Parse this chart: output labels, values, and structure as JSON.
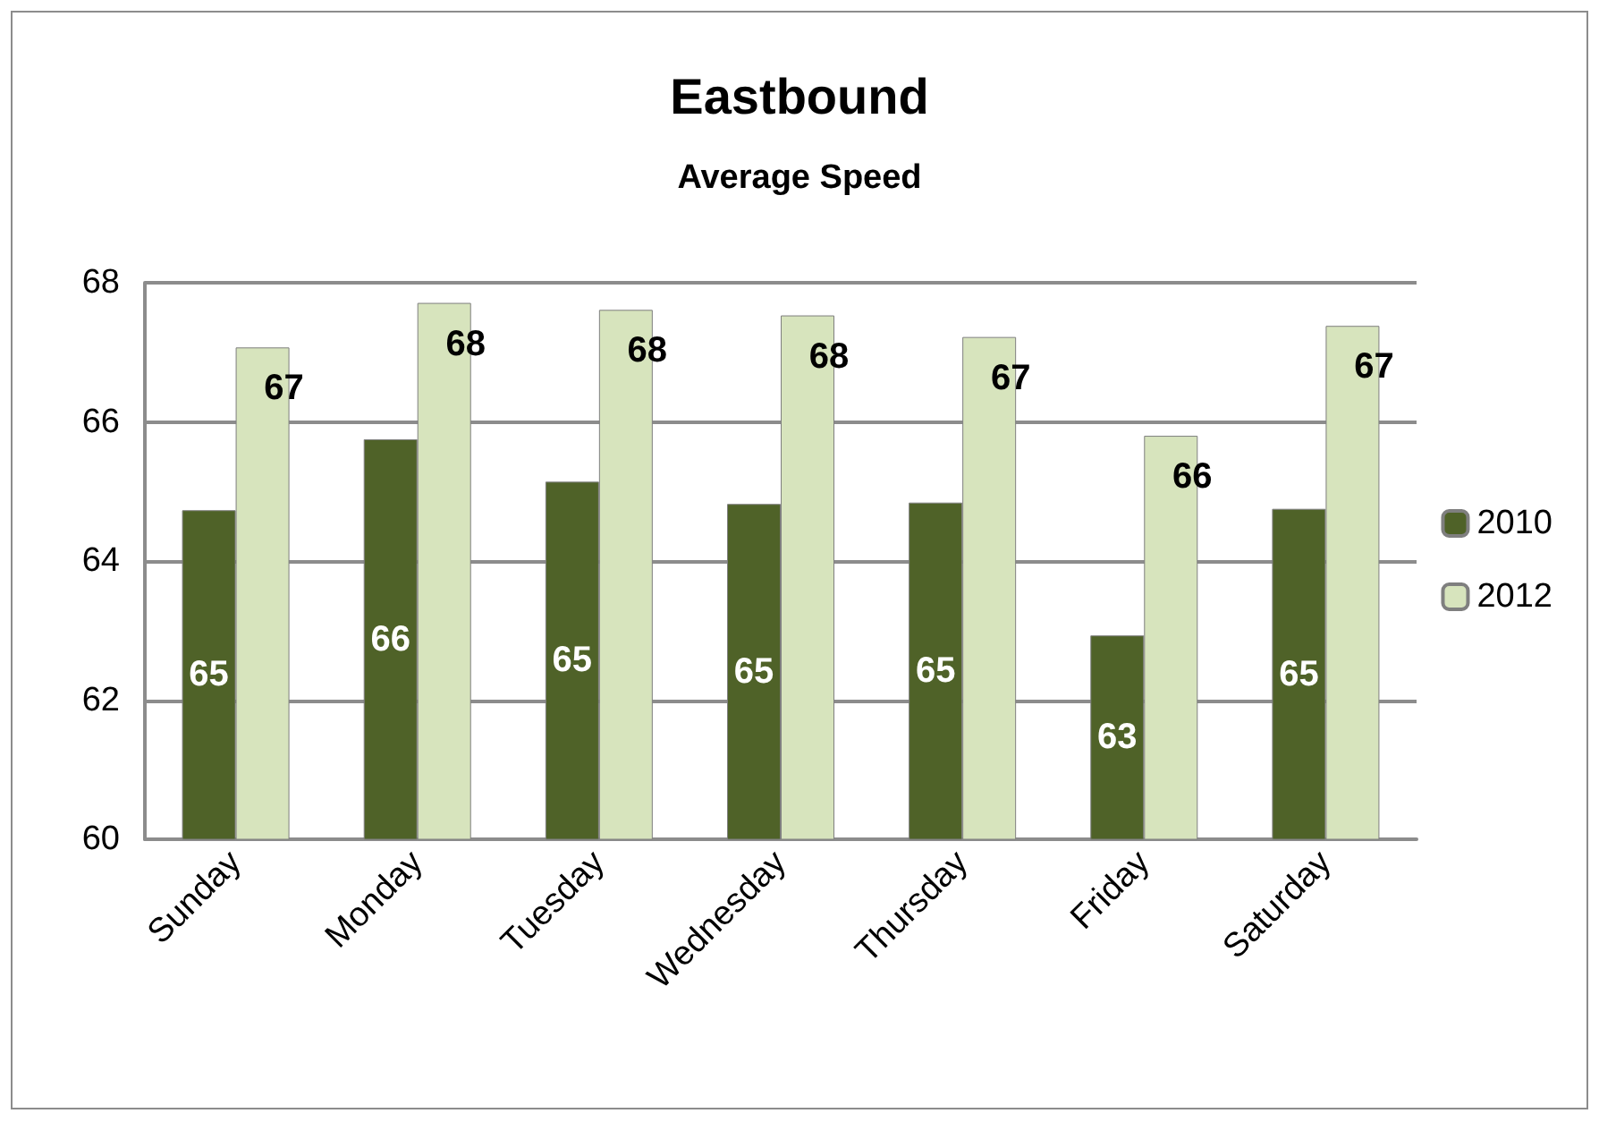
{
  "chart_data": {
    "type": "bar",
    "title": "Eastbound",
    "subtitle": "Average Speed",
    "categories": [
      "Sunday",
      "Monday",
      "Tuesday",
      "Wednesday",
      "Thursday",
      "Friday",
      "Saturday"
    ],
    "series": [
      {
        "name": "2010",
        "color": "#4f6228",
        "values": [
          64.73,
          65.75,
          65.14,
          64.82,
          64.84,
          62.93,
          64.75
        ],
        "value_labels": [
          "65",
          "66",
          "65",
          "65",
          "65",
          "63",
          "65"
        ]
      },
      {
        "name": "2012",
        "color": "#d7e4bd",
        "values": [
          67.07,
          67.71,
          67.61,
          67.53,
          67.22,
          65.8,
          67.38
        ],
        "value_labels": [
          "67",
          "68",
          "68",
          "68",
          "67",
          "66",
          "67"
        ]
      }
    ],
    "ylim": [
      60,
      68
    ],
    "yticks": [
      60,
      62,
      64,
      66,
      68
    ],
    "grid": "y",
    "legend": "right"
  }
}
